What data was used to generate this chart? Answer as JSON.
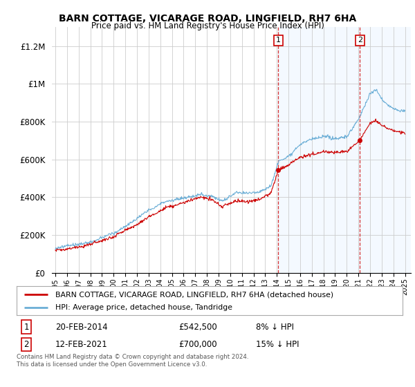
{
  "title": "BARN COTTAGE, VICARAGE ROAD, LINGFIELD, RH7 6HA",
  "subtitle": "Price paid vs. HM Land Registry's House Price Index (HPI)",
  "ylabel_ticks": [
    "£0",
    "£200K",
    "£400K",
    "£600K",
    "£800K",
    "£1M",
    "£1.2M"
  ],
  "ytick_values": [
    0,
    200000,
    400000,
    600000,
    800000,
    1000000,
    1200000
  ],
  "ylim": [
    0,
    1300000
  ],
  "xlim_start": 1994.7,
  "xlim_end": 2025.5,
  "legend_line1": "BARN COTTAGE, VICARAGE ROAD, LINGFIELD, RH7 6HA (detached house)",
  "legend_line2": "HPI: Average price, detached house, Tandridge",
  "sale1_date": "20-FEB-2014",
  "sale1_price": "£542,500",
  "sale1_pct": "8% ↓ HPI",
  "sale2_date": "12-FEB-2021",
  "sale2_price": "£700,000",
  "sale2_pct": "15% ↓ HPI",
  "footer": "Contains HM Land Registry data © Crown copyright and database right 2024.\nThis data is licensed under the Open Government Licence v3.0.",
  "color_hpi": "#6baed6",
  "color_price": "#cc0000",
  "color_shade": "#ddeeff",
  "background_color": "#ffffff",
  "grid_color": "#cccccc",
  "sale1_x": 2014.12,
  "sale1_y": 542500,
  "sale2_x": 2021.12,
  "sale2_y": 700000,
  "n_points": 730
}
